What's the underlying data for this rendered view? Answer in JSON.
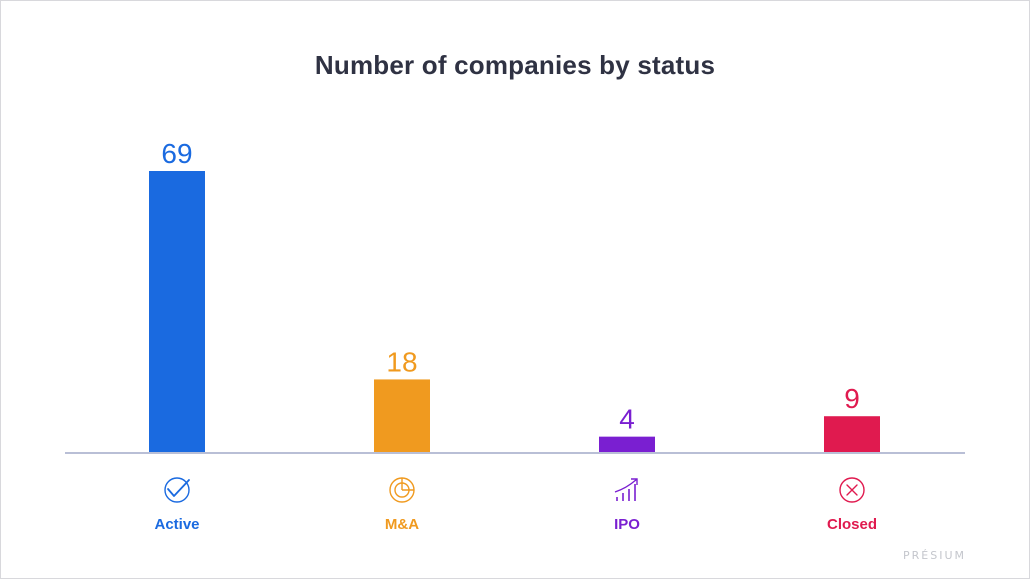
{
  "chart_data": {
    "type": "bar",
    "title": "Number of companies by status",
    "xlabel": "",
    "ylabel": "",
    "categories": [
      "Active",
      "M&A",
      "IPO",
      "Closed"
    ],
    "values": [
      69,
      18,
      4,
      9
    ],
    "colors": [
      "#1a6ae0",
      "#f09a1f",
      "#7a1fd1",
      "#e01a4f"
    ],
    "icons": [
      "check-circle-icon",
      "pie-chart-icon",
      "growth-chart-icon",
      "x-circle-icon"
    ],
    "ylim": [
      0,
      69
    ],
    "grid": false,
    "legend": "none"
  },
  "branding": {
    "logo_text": "PRÉSIUM"
  }
}
